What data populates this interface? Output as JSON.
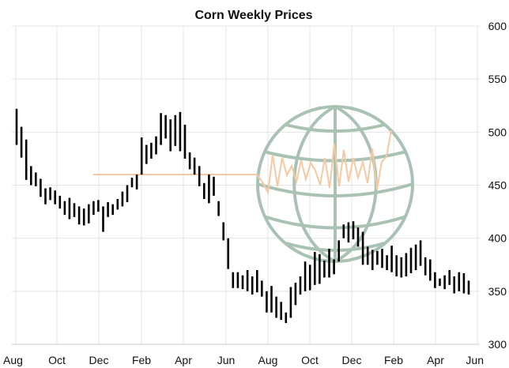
{
  "chart_data": {
    "type": "bar",
    "subtype": "ohlc",
    "title": "Corn Weekly Prices",
    "xlabel": "",
    "ylabel": "",
    "ylim": [
      300,
      600
    ],
    "y_ticks": [
      "600",
      "550",
      "500",
      "450",
      "400",
      "350",
      "300"
    ],
    "x_ticks": [
      "Aug",
      "Oct",
      "Dec",
      "Feb",
      "Apr",
      "Jun",
      "Aug",
      "Oct",
      "Dec",
      "Feb",
      "Apr",
      "Jun"
    ],
    "grid": true,
    "y_axis_position": "right",
    "bar_color": "#000000",
    "watermark": {
      "icon": "globe-icon",
      "color": "#a9c2b3"
    },
    "watermark_line_color": "#f5c9a3",
    "bars": [
      [
        522,
        488
      ],
      [
        505,
        476
      ],
      [
        493,
        455
      ],
      [
        468,
        450
      ],
      [
        462,
        449
      ],
      [
        456,
        439
      ],
      [
        447,
        432
      ],
      [
        448,
        436
      ],
      [
        445,
        432
      ],
      [
        440,
        428
      ],
      [
        435,
        422
      ],
      [
        438,
        418
      ],
      [
        433,
        420
      ],
      [
        430,
        413
      ],
      [
        428,
        412
      ],
      [
        432,
        414
      ],
      [
        435,
        422
      ],
      [
        436,
        425
      ],
      [
        430,
        406
      ],
      [
        434,
        420
      ],
      [
        432,
        422
      ],
      [
        437,
        427
      ],
      [
        444,
        430
      ],
      [
        450,
        434
      ],
      [
        457,
        448
      ],
      [
        460,
        446
      ],
      [
        495,
        460
      ],
      [
        488,
        470
      ],
      [
        490,
        475
      ],
      [
        496,
        479
      ],
      [
        518,
        488
      ],
      [
        516,
        494
      ],
      [
        512,
        482
      ],
      [
        516,
        487
      ],
      [
        519,
        482
      ],
      [
        507,
        475
      ],
      [
        481,
        465
      ],
      [
        476,
        460
      ],
      [
        468,
        449
      ],
      [
        452,
        437
      ],
      [
        460,
        433
      ],
      [
        458,
        440
      ],
      [
        435,
        421
      ],
      [
        415,
        398
      ],
      [
        400,
        371
      ],
      [
        368,
        353
      ],
      [
        368,
        353
      ],
      [
        365,
        352
      ],
      [
        370,
        350
      ],
      [
        364,
        347
      ],
      [
        370,
        349
      ],
      [
        360,
        345
      ],
      [
        350,
        330
      ],
      [
        355,
        330
      ],
      [
        345,
        325
      ],
      [
        340,
        323
      ],
      [
        330,
        320
      ],
      [
        354,
        325
      ],
      [
        358,
        337
      ],
      [
        364,
        347
      ],
      [
        378,
        350
      ],
      [
        375,
        351
      ],
      [
        387,
        356
      ],
      [
        385,
        357
      ],
      [
        379,
        363
      ],
      [
        390,
        363
      ],
      [
        380,
        366
      ],
      [
        398,
        378
      ],
      [
        413,
        400
      ],
      [
        415,
        396
      ],
      [
        416,
        399
      ],
      [
        410,
        392
      ],
      [
        406,
        375
      ],
      [
        392,
        375
      ],
      [
        389,
        370
      ],
      [
        388,
        375
      ],
      [
        390,
        372
      ],
      [
        384,
        370
      ],
      [
        393,
        368
      ],
      [
        384,
        364
      ],
      [
        382,
        363
      ],
      [
        386,
        364
      ],
      [
        391,
        367
      ],
      [
        394,
        370
      ],
      [
        398,
        374
      ],
      [
        382,
        365
      ],
      [
        380,
        360
      ],
      [
        368,
        353
      ],
      [
        362,
        355
      ],
      [
        365,
        352
      ],
      [
        370,
        356
      ],
      [
        364,
        348
      ],
      [
        368,
        350
      ],
      [
        367,
        348
      ],
      [
        360,
        347
      ]
    ]
  }
}
